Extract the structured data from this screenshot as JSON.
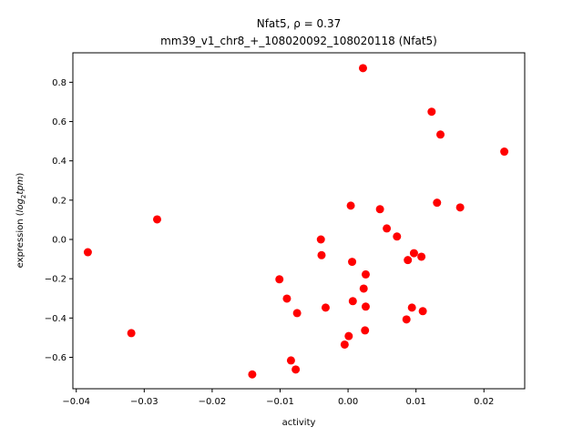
{
  "chart_data": {
    "type": "scatter",
    "title_line1": "Nfat5, ρ = 0.37",
    "title_line2": "mm39_v1_chr8_+_108020092_108020118 (Nfat5)",
    "xlabel": "activity",
    "ylabel_main": "expression (",
    "ylabel_math": "log",
    "ylabel_sub": "2",
    "ylabel_math2": "tpm",
    "ylabel_close": ")",
    "xlim": [
      -0.0405,
      0.026
    ],
    "ylim": [
      -0.76,
      0.95
    ],
    "x_ticks": [
      -0.04,
      -0.03,
      -0.02,
      -0.01,
      0.0,
      0.01,
      0.02
    ],
    "x_tick_labels": [
      "−0.04",
      "−0.03",
      "−0.02",
      "−0.01",
      "0.00",
      "0.01",
      "0.02"
    ],
    "y_ticks": [
      -0.6,
      -0.4,
      -0.2,
      0.0,
      0.2,
      0.4,
      0.6,
      0.8
    ],
    "y_tick_labels": [
      "−0.6",
      "−0.4",
      "−0.2",
      "0.0",
      "0.2",
      "0.4",
      "0.6",
      "0.8"
    ],
    "marker_color": "#ff0000",
    "grid": false,
    "points": [
      {
        "x": -0.0383,
        "y": -0.065
      },
      {
        "x": -0.0319,
        "y": -0.477
      },
      {
        "x": -0.0281,
        "y": 0.102
      },
      {
        "x": -0.0141,
        "y": -0.687
      },
      {
        "x": -0.0101,
        "y": -0.203
      },
      {
        "x": -0.009,
        "y": -0.301
      },
      {
        "x": -0.0084,
        "y": -0.616
      },
      {
        "x": -0.0077,
        "y": -0.662
      },
      {
        "x": -0.0075,
        "y": -0.375
      },
      {
        "x": -0.004,
        "y": 0.0
      },
      {
        "x": -0.0039,
        "y": -0.08
      },
      {
        "x": -0.0033,
        "y": -0.347
      },
      {
        "x": -0.0005,
        "y": -0.535
      },
      {
        "x": 0.0001,
        "y": -0.492
      },
      {
        "x": 0.0004,
        "y": 0.172
      },
      {
        "x": 0.0006,
        "y": -0.114
      },
      {
        "x": 0.0007,
        "y": -0.314
      },
      {
        "x": 0.0022,
        "y": 0.872
      },
      {
        "x": 0.0023,
        "y": -0.25
      },
      {
        "x": 0.0025,
        "y": -0.463
      },
      {
        "x": 0.0026,
        "y": -0.178
      },
      {
        "x": 0.0026,
        "y": -0.342
      },
      {
        "x": 0.0047,
        "y": 0.154
      },
      {
        "x": 0.0057,
        "y": 0.056
      },
      {
        "x": 0.0072,
        "y": 0.015
      },
      {
        "x": 0.0086,
        "y": -0.407
      },
      {
        "x": 0.0088,
        "y": -0.105
      },
      {
        "x": 0.0094,
        "y": -0.347
      },
      {
        "x": 0.0097,
        "y": -0.07
      },
      {
        "x": 0.0108,
        "y": -0.088
      },
      {
        "x": 0.011,
        "y": -0.365
      },
      {
        "x": 0.0123,
        "y": 0.65
      },
      {
        "x": 0.0131,
        "y": 0.187
      },
      {
        "x": 0.0136,
        "y": 0.534
      },
      {
        "x": 0.0165,
        "y": 0.163
      },
      {
        "x": 0.023,
        "y": 0.447
      }
    ]
  }
}
